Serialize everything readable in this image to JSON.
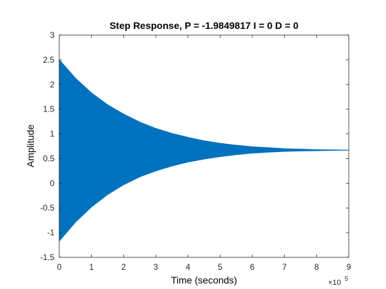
{
  "chart_data": {
    "type": "area",
    "title": "Step Response, P = -1.9849817 I = 0 D = 0",
    "xlabel": "Time (seconds)",
    "ylabel": "Amplitude",
    "x_exponent_base": "×10",
    "x_exponent_power": "5",
    "xlim": [
      0,
      9
    ],
    "ylim": [
      -1.5,
      3
    ],
    "xticks": [
      "0",
      "1",
      "2",
      "3",
      "4",
      "5",
      "6",
      "7",
      "8",
      "9"
    ],
    "yticks": [
      "-1.5",
      "-1",
      "-0.5",
      "0",
      "0.5",
      "1",
      "1.5",
      "2",
      "2.5",
      "3"
    ],
    "grid": false,
    "series": [
      {
        "color": "#0072BD",
        "x": [
          0,
          0.5,
          1,
          1.5,
          2,
          2.5,
          3,
          3.5,
          4,
          4.5,
          5,
          5.5,
          6,
          6.5,
          7,
          7.5,
          8,
          8.5,
          9
        ],
        "upper": [
          2.5,
          2.13,
          1.83,
          1.59,
          1.4,
          1.24,
          1.11,
          1.01,
          0.93,
          0.86,
          0.81,
          0.77,
          0.74,
          0.72,
          0.7,
          0.69,
          0.68,
          0.675,
          0.67
        ],
        "lower": [
          -1.17,
          -0.79,
          -0.48,
          -0.23,
          -0.03,
          0.13,
          0.25,
          0.35,
          0.43,
          0.49,
          0.54,
          0.58,
          0.61,
          0.63,
          0.645,
          0.655,
          0.66,
          0.665,
          0.67
        ]
      }
    ]
  }
}
